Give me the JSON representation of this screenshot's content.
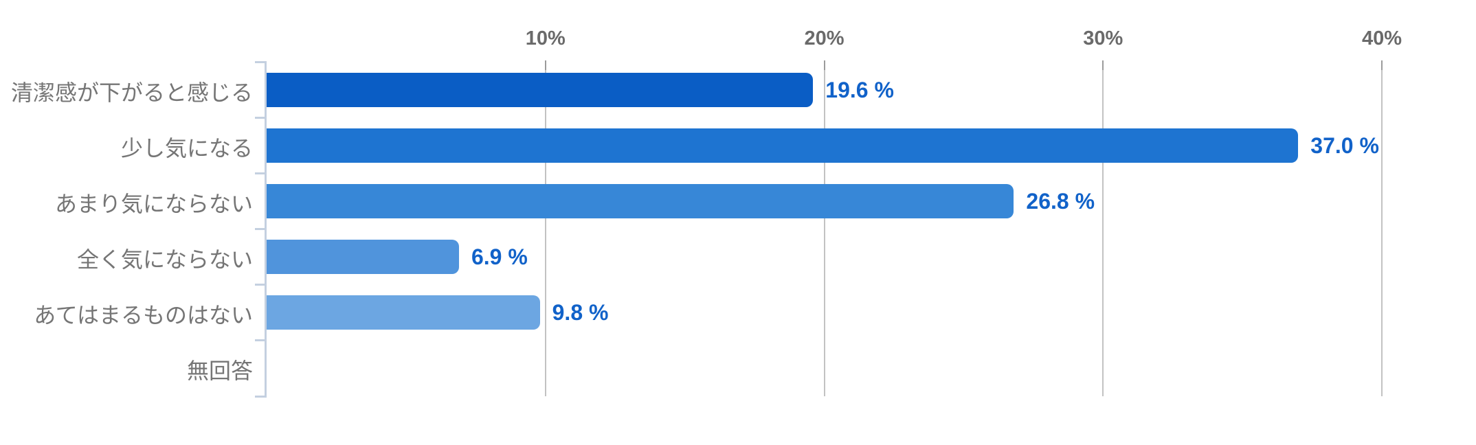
{
  "chart_data": {
    "type": "bar",
    "orientation": "horizontal",
    "title": "",
    "categories": [
      "清潔感が下がると感じる",
      "少し気になる",
      "あまり気にならない",
      "全く気にならない",
      "あてはまるものはない",
      "無回答"
    ],
    "values": [
      19.6,
      37.0,
      26.8,
      6.9,
      9.8,
      0
    ],
    "value_labels": [
      "19.6 %",
      "37.0 %",
      "26.8 %",
      "6.9 %",
      "9.8 %",
      ""
    ],
    "x_axis": {
      "position": "top",
      "tick_labels": [
        "10%",
        "20%",
        "30%",
        "40%"
      ],
      "tick_values": [
        10,
        20,
        30,
        40
      ],
      "min": 0,
      "max": 40,
      "unit": "%"
    },
    "grid": true,
    "legend": false,
    "colors": {
      "bars": [
        "#0a5dc5",
        "#1e74d1",
        "#3787d7",
        "#5094dc",
        "#6ca6e2"
      ],
      "value_label": "#1162c9",
      "category_label": "#757575",
      "axis_tick_label": "#6a6a6a",
      "gridline": "#c2c2c2",
      "axis_line": "#c4d0e0"
    }
  }
}
